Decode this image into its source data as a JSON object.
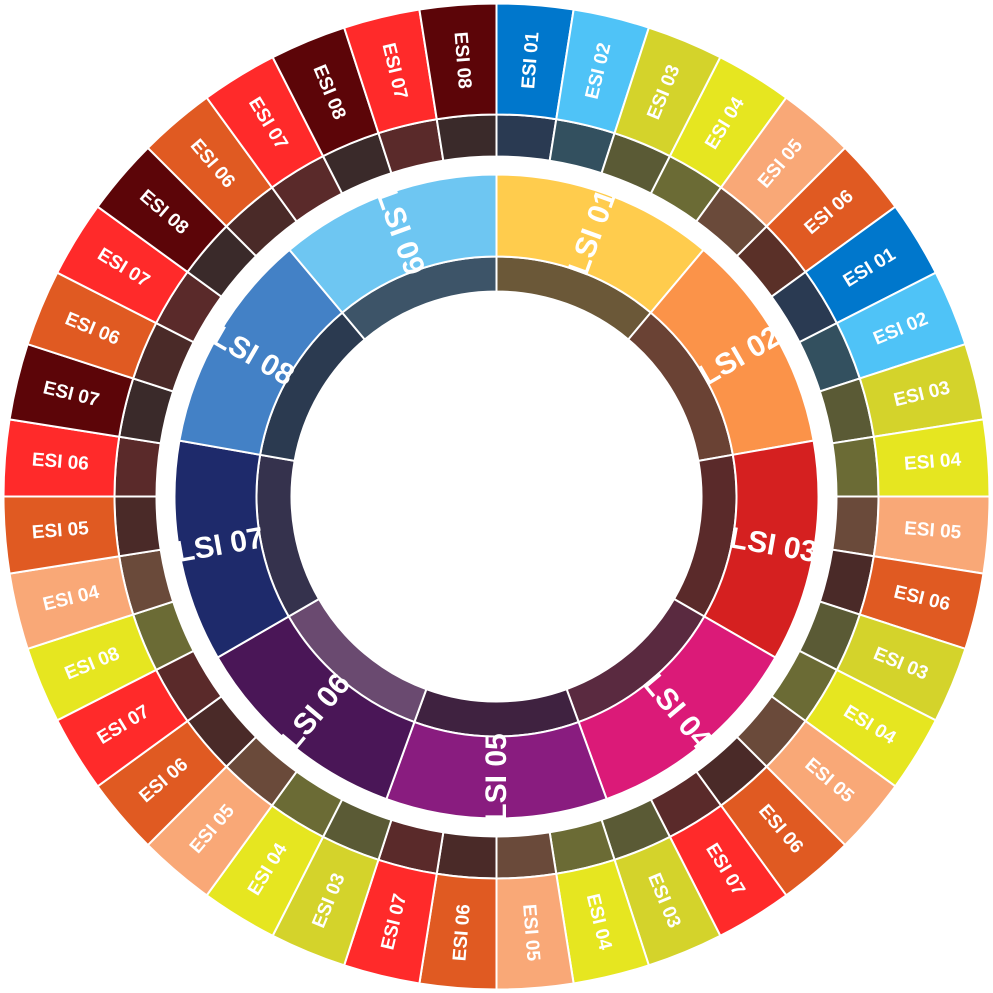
{
  "diagram": {
    "inner_ring": [
      {
        "label": "LSI 01",
        "color": "#ffcc4d",
        "dark": "#6b5838"
      },
      {
        "label": "LSI 02",
        "color": "#fb9349",
        "dark": "#6a4234"
      },
      {
        "label": "LSI 03",
        "color": "#d52020",
        "dark": "#5a2a2a"
      },
      {
        "label": "LSI 04",
        "color": "#db1a78",
        "dark": "#5a2a40"
      },
      {
        "label": "LSI 05",
        "color": "#891c7f",
        "dark": "#3f2240"
      },
      {
        "label": "LSI 06",
        "color": "#4a1657",
        "dark": "#6a4a70"
      },
      {
        "label": "LSI 07",
        "color": "#1e2a6b",
        "dark": "#35324d"
      },
      {
        "label": "LSI 08",
        "color": "#4381c6",
        "dark": "#2b3a50"
      },
      {
        "label": "LSI 09",
        "color": "#6ec6f2",
        "dark": "#3d5468"
      }
    ],
    "outer_ring": [
      {
        "label": "ESI 01",
        "color": "#0077cc",
        "dark": "#2a3a52"
      },
      {
        "label": "ESI 02",
        "color": "#4fc3f7",
        "dark": "#33505f"
      },
      {
        "label": "ESI 03",
        "color": "#d4d32b",
        "dark": "#5a5a35"
      },
      {
        "label": "ESI 04",
        "color": "#e6e620",
        "dark": "#6b6b35"
      },
      {
        "label": "ESI 05",
        "color": "#f9a877",
        "dark": "#6a4a3a"
      },
      {
        "label": "ESI 06",
        "color": "#e05a22",
        "dark": "#5a3028"
      },
      {
        "label": "ESI 01",
        "color": "#0077cc",
        "dark": "#2a3a52"
      },
      {
        "label": "ESI 02",
        "color": "#4fc3f7",
        "dark": "#33505f"
      },
      {
        "label": "ESI 03",
        "color": "#d4d32b",
        "dark": "#5a5a35"
      },
      {
        "label": "ESI 04",
        "color": "#e6e620",
        "dark": "#6b6b35"
      },
      {
        "label": "ESI 05",
        "color": "#f9a877",
        "dark": "#6a4a3a"
      },
      {
        "label": "ESI 06",
        "color": "#e05a22",
        "dark": "#4a2a28"
      },
      {
        "label": "ESI 03",
        "color": "#d4d32b",
        "dark": "#5a5a35"
      },
      {
        "label": "ESI 04",
        "color": "#e6e620",
        "dark": "#6b6b35"
      },
      {
        "label": "ESI 05",
        "color": "#f9a877",
        "dark": "#6a4a3a"
      },
      {
        "label": "ESI 06",
        "color": "#e05a22",
        "dark": "#4a2a28"
      },
      {
        "label": "ESI 07",
        "color": "#ff2a2a",
        "dark": "#5a2a2a"
      },
      {
        "label": "ESI 03",
        "color": "#d4d32b",
        "dark": "#5a5a35"
      },
      {
        "label": "ESI 04",
        "color": "#e6e620",
        "dark": "#6b6b35"
      },
      {
        "label": "ESI 05",
        "color": "#f9a877",
        "dark": "#6a4a3a"
      },
      {
        "label": "ESI 06",
        "color": "#e05a22",
        "dark": "#4a2a28"
      },
      {
        "label": "ESI 07",
        "color": "#ff2a2a",
        "dark": "#5a2a2a"
      },
      {
        "label": "ESI 03",
        "color": "#d4d32b",
        "dark": "#5a5a35"
      },
      {
        "label": "ESI 04",
        "color": "#e6e620",
        "dark": "#6b6b35"
      },
      {
        "label": "ESI 05",
        "color": "#f9a877",
        "dark": "#6a4a3a"
      },
      {
        "label": "ESI 06",
        "color": "#e05a22",
        "dark": "#4a2a28"
      },
      {
        "label": "ESI 07",
        "color": "#ff2a2a",
        "dark": "#5a2a2a"
      },
      {
        "label": "ESI 08",
        "color": "#e6e620",
        "dark": "#6b6b35"
      },
      {
        "label": "ESI 04",
        "color": "#f9a877",
        "dark": "#6a4a3a"
      },
      {
        "label": "ESI 05",
        "color": "#e05a22",
        "dark": "#4a2a28"
      },
      {
        "label": "ESI 06",
        "color": "#ff2a2a",
        "dark": "#5a2a2a"
      },
      {
        "label": "ESI 07",
        "color": "#5c0508",
        "dark": "#3a2a2a"
      },
      {
        "label": "ESI 06",
        "color": "#e05a22",
        "dark": "#4a2a28"
      },
      {
        "label": "ESI 07",
        "color": "#ff2a2a",
        "dark": "#5a2a2a"
      },
      {
        "label": "ESI 08",
        "color": "#5c0508",
        "dark": "#3a2a2a"
      },
      {
        "label": "ESI 06",
        "color": "#e05a22",
        "dark": "#4a2a28"
      },
      {
        "label": "ESI 07",
        "color": "#ff2a2a",
        "dark": "#5a2a2a"
      },
      {
        "label": "ESI 08",
        "color": "#5c0508",
        "dark": "#3a2a2a"
      },
      {
        "label": "ESI 07",
        "color": "#ff2a2a",
        "dark": "#5a2a2a"
      },
      {
        "label": "ESI 08",
        "color": "#5c0508",
        "dark": "#3a2a2a"
      }
    ]
  }
}
